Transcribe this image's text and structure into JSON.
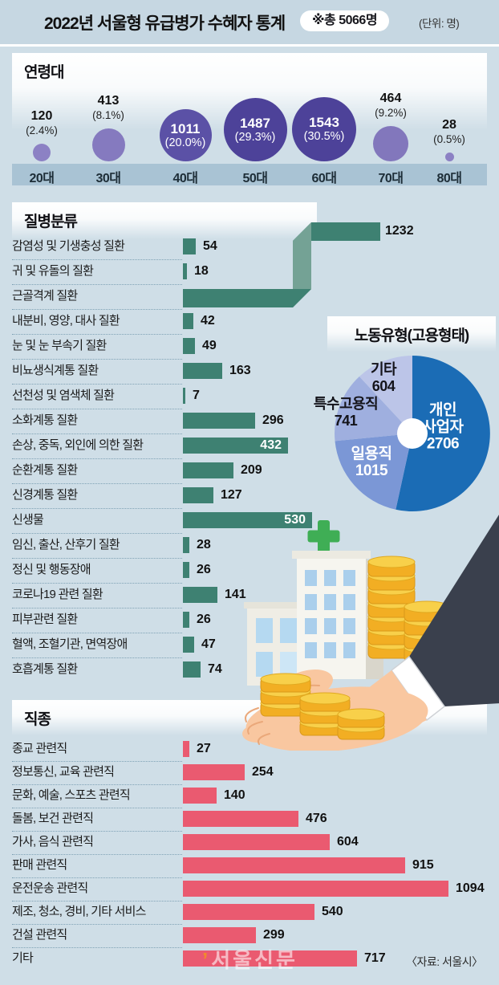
{
  "header": {
    "title": "2022년 서울형 유급병가 수혜자 통계",
    "total_badge": "※총 5066명",
    "unit_note": "(단위: 명)"
  },
  "colors": {
    "background": "#cfdee7",
    "topbar_bg": "#c6d7e2",
    "band_bg": "#a9c3d4",
    "disease_bar": "#3e8172",
    "disease_bar_fold": "#74a295",
    "job_bar": "#ea5a70",
    "age_bubbles": [
      "#8c81c4",
      "#857abf",
      "#5b51a6",
      "#4d4299",
      "#4d4299",
      "#8277bc",
      "#8c81c4"
    ],
    "pie_slices": [
      "#1b6cb5",
      "#7b97d6",
      "#9fafdf",
      "#bcc5e8"
    ],
    "pie_text": [
      "#ffffff",
      "#ffffff",
      "#14141a",
      "#14141a"
    ]
  },
  "chart_data": [
    {
      "type": "bubble",
      "title": "연령대",
      "unit": "명",
      "categories": [
        "20대",
        "30대",
        "40대",
        "50대",
        "60대",
        "70대",
        "80대"
      ],
      "values": [
        120,
        413,
        1011,
        1487,
        1543,
        464,
        28
      ],
      "pct": [
        2.4,
        8.1,
        20.0,
        29.3,
        30.5,
        9.2,
        0.5
      ]
    },
    {
      "type": "bar",
      "orientation": "horizontal",
      "title": "질병분류",
      "unit": "명",
      "categories": [
        "감염성 및 기생충성 질환",
        "귀 및 유돌의 질환",
        "근골격계 질환",
        "내분비, 영양, 대사 질환",
        "눈 및 눈 부속기 질환",
        "비뇨생식계통 질환",
        "선천성 및 염색체 질환",
        "소화계통 질환",
        "손상, 중독, 외인에 의한 질환",
        "순환계통 질환",
        "신경계통 질환",
        "신생물",
        "임신, 출산, 산후기 질환",
        "정신 및 행동장애",
        "코로나19 관련 질환",
        "피부관련 질환",
        "혈액, 조혈기관, 면역장애",
        "호흡계통 질환"
      ],
      "values": [
        54,
        18,
        1232,
        42,
        49,
        163,
        7,
        296,
        432,
        209,
        127,
        530,
        28,
        26,
        141,
        26,
        47,
        74
      ]
    },
    {
      "type": "pie",
      "title": "노동유형(고용형태)",
      "unit": "명",
      "labels": [
        "개인 사업자",
        "일용직",
        "특수고용직",
        "기타"
      ],
      "values": [
        2706,
        1015,
        741,
        604
      ]
    },
    {
      "type": "bar",
      "orientation": "horizontal",
      "title": "직종",
      "unit": "명",
      "categories": [
        "종교 관련직",
        "정보통신, 교육 관련직",
        "문화, 예술, 스포츠 관련직",
        "돌봄, 보건 관련직",
        "가사, 음식 관련직",
        "판매 관련직",
        "운전운송 관련직",
        "제조, 청소, 경비, 기타 서비스",
        "건설 관련직",
        "기타"
      ],
      "values": [
        27,
        254,
        140,
        476,
        604,
        915,
        1094,
        540,
        299,
        717
      ]
    }
  ],
  "footer": {
    "watermark": "서울신문",
    "source": "〈자료: 서울시〉"
  }
}
